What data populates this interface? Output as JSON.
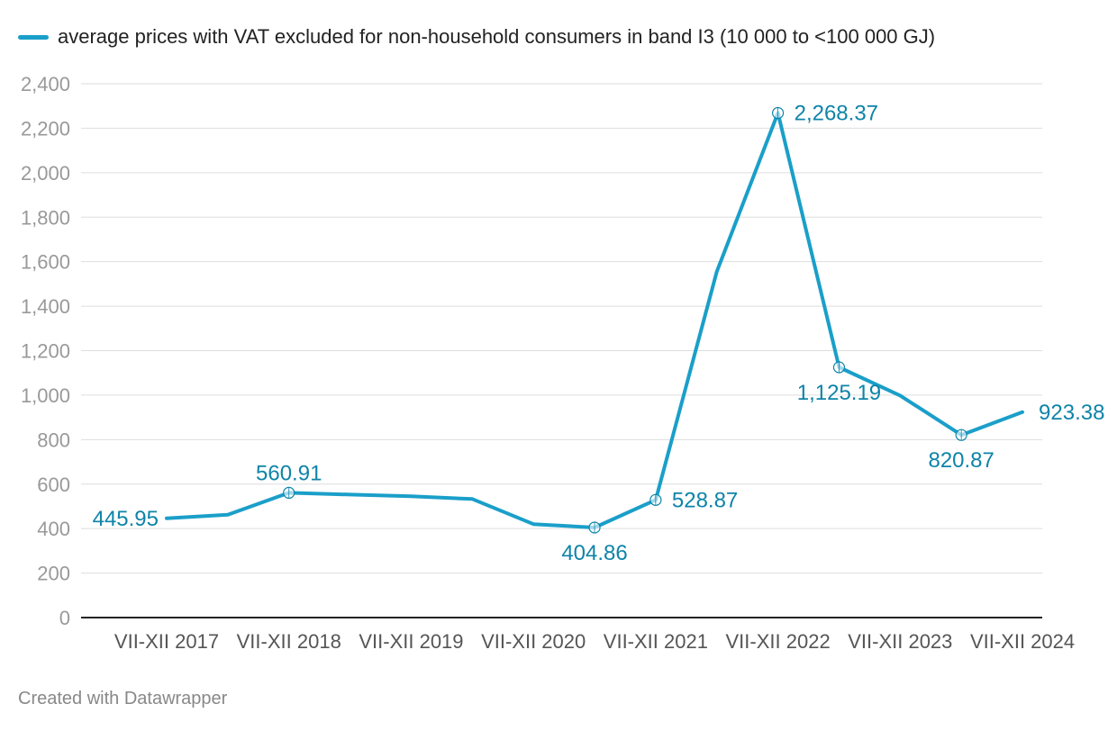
{
  "colors": {
    "series": "#1a9fc9",
    "label": "#0e84a8",
    "grid": "#dddddd",
    "axis": "#222222",
    "tick": "#999999",
    "xtick": "#555555"
  },
  "legend_label": "average prices with VAT excluded for non-household consumers in band I3 (10 000 to <100 000 GJ)",
  "credit": "Created with Datawrapper",
  "chart_data": {
    "type": "line",
    "title": "",
    "xlabel": "",
    "ylabel": "",
    "ylim": [
      0,
      2400
    ],
    "yticks": [
      0,
      200,
      400,
      600,
      800,
      1000,
      1200,
      1400,
      1600,
      1800,
      2000,
      2200,
      2400
    ],
    "ytick_labels": [
      "0",
      "200",
      "400",
      "600",
      "800",
      "1,000",
      "1,200",
      "1,400",
      "1,600",
      "1,800",
      "2,000",
      "2,200",
      "2,400"
    ],
    "x_labels": [
      "VII-XII 2017",
      "VII-XII 2018",
      "VII-XII 2019",
      "VII-XII 2020",
      "VII-XII 2021",
      "VII-XII 2022",
      "VII-XII 2023",
      "VII-XII 2024"
    ],
    "grid": true,
    "legend_position": "top-left",
    "series": [
      {
        "name": "average prices with VAT excluded for non-household consumers in band I3 (10 000 to <100 000 GJ)",
        "values": [
          445.95,
          462,
          560.91,
          553,
          545,
          533,
          420,
          404.86,
          528.87,
          1555,
          2268.37,
          1125.19,
          998,
          820.87,
          923.38
        ]
      }
    ],
    "labeled_points": [
      {
        "index": 0,
        "text": "445.95",
        "pos": "left",
        "marker": false
      },
      {
        "index": 2,
        "text": "560.91",
        "pos": "above",
        "marker": true
      },
      {
        "index": 7,
        "text": "404.86",
        "pos": "below",
        "marker": true
      },
      {
        "index": 8,
        "text": "528.87",
        "pos": "right",
        "marker": true
      },
      {
        "index": 10,
        "text": "2,268.37",
        "pos": "right",
        "marker": true
      },
      {
        "index": 11,
        "text": "1,125.19",
        "pos": "below",
        "marker": true
      },
      {
        "index": 13,
        "text": "820.87",
        "pos": "below",
        "marker": true
      },
      {
        "index": 14,
        "text": "923.38",
        "pos": "right",
        "marker": false
      }
    ]
  }
}
